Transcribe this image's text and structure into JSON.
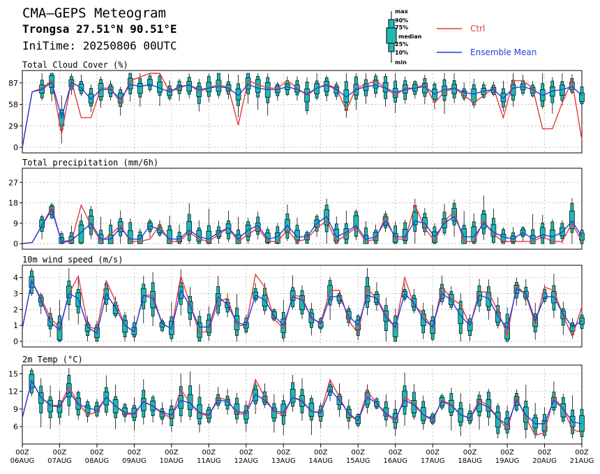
{
  "header": {
    "title": "CMA—GEPS Meteogram",
    "location": "Trongsa 27.51°N 90.51°E",
    "init": "IniTime: 20250806 00UTC"
  },
  "legend": {
    "box_labels": [
      "max",
      "90%",
      "75%",
      "median",
      "25%",
      "10%",
      "min"
    ],
    "ctrl": "Ctrl",
    "mean": "Ensemble Mean",
    "ctrl_color": "#e8393b",
    "mean_color": "#1f3fe0",
    "box_color": "#1fb9b3"
  },
  "chart_data": [
    {
      "type": "box-line",
      "title": "Total Cloud Cover (%)",
      "ylim": [
        0,
        100
      ],
      "yticks": [
        0,
        29,
        58,
        87
      ],
      "ctrl": [
        0,
        75,
        80,
        90,
        18,
        90,
        40,
        40,
        80,
        80,
        60,
        90,
        95,
        100,
        100,
        75,
        80,
        85,
        75,
        80,
        85,
        80,
        30,
        90,
        85,
        80,
        80,
        90,
        80,
        70,
        80,
        85,
        80,
        50,
        80,
        85,
        90,
        80,
        70,
        80,
        80,
        85,
        60,
        75,
        80,
        70,
        60,
        70,
        80,
        40,
        90,
        90,
        80,
        25,
        25,
        60,
        90,
        10
      ],
      "mean": [
        0,
        75,
        78,
        88,
        40,
        88,
        80,
        65,
        78,
        78,
        65,
        85,
        82,
        85,
        80,
        75,
        82,
        84,
        78,
        80,
        82,
        80,
        70,
        85,
        80,
        78,
        78,
        82,
        78,
        72,
        80,
        84,
        78,
        68,
        78,
        82,
        84,
        80,
        74,
        78,
        80,
        82,
        72,
        78,
        80,
        74,
        72,
        76,
        78,
        66,
        80,
        82,
        78,
        70,
        76,
        78,
        82,
        70
      ]
    },
    {
      "type": "box-line",
      "title": "Total precipitation (mm/6h)",
      "ylim": [
        0,
        32
      ],
      "yticks": [
        0,
        9,
        18,
        27
      ],
      "ctrl": [
        0,
        0.5,
        8,
        16,
        0.5,
        1,
        17,
        8,
        1,
        4,
        8,
        1,
        1,
        2,
        8,
        1,
        1,
        5,
        2,
        1,
        4,
        7,
        1,
        4,
        7,
        1,
        1,
        6,
        1,
        2,
        7,
        10,
        1,
        4,
        7,
        1,
        2,
        12,
        2,
        2,
        17,
        7,
        1,
        10,
        14,
        1,
        1,
        10,
        4,
        1,
        1,
        1,
        1,
        3,
        1,
        1,
        9,
        1
      ],
      "mean": [
        0,
        0.5,
        8,
        15,
        0.8,
        1.5,
        5,
        9,
        2,
        2,
        7,
        2,
        2,
        8,
        6,
        2,
        2,
        6,
        3,
        2,
        5,
        7,
        2,
        6,
        8,
        2,
        3,
        8,
        3,
        3,
        9,
        12,
        3,
        5,
        8,
        2,
        3,
        10,
        3,
        3,
        10,
        9,
        3,
        9,
        12,
        3,
        3,
        9,
        5,
        3,
        2,
        5,
        2,
        4,
        3,
        5,
        10,
        3
      ]
    },
    {
      "type": "box-line",
      "title": "10m wind speed (m/s)",
      "ylim": [
        0,
        4.6
      ],
      "yticks": [
        0,
        1,
        2,
        3,
        4
      ],
      "ctrl": [
        0.8,
        3.8,
        2.7,
        1.5,
        0.8,
        3,
        4.1,
        1,
        0.7,
        3.8,
        2.5,
        1,
        0.6,
        2.9,
        2.9,
        1.1,
        0.8,
        4.1,
        2.3,
        0.5,
        0.7,
        2.5,
        2.7,
        1,
        1,
        4.2,
        3.4,
        1.4,
        0.8,
        2.9,
        2.8,
        1.4,
        1.2,
        3.2,
        3.2,
        1.3,
        0.5,
        3.3,
        2.7,
        1.7,
        0.8,
        4,
        2.3,
        1.7,
        0.8,
        3.4,
        2.7,
        2.3,
        1,
        3.1,
        3.1,
        1.9,
        0.4,
        3.5,
        2.9,
        1.1,
        3.4,
        3.2,
        1.6,
        0.3,
        2.2
      ],
      "mean": [
        0.8,
        3.8,
        2.6,
        1.2,
        0.7,
        3,
        2.7,
        0.9,
        0.5,
        3,
        2.1,
        1,
        0.6,
        2.9,
        2.7,
        1.1,
        0.8,
        3.2,
        2.2,
        0.9,
        0.9,
        2.8,
        2.3,
        1.2,
        1,
        2.9,
        2.6,
        1.6,
        1,
        2.8,
        2.6,
        1.5,
        1.1,
        2.8,
        2.8,
        1.6,
        1,
        2.9,
        2.7,
        1.5,
        0.9,
        3,
        2.4,
        1.4,
        0.9,
        3,
        2.6,
        1.6,
        1,
        2.9,
        2.7,
        1.6,
        0.8,
        3.3,
        3,
        1.3,
        2.8,
        2.8,
        1.7,
        0.9,
        1.3
      ]
    },
    {
      "type": "box-line",
      "title": "2m Temp (°C)",
      "ylim": [
        4,
        16
      ],
      "yticks": [
        6,
        9,
        12,
        15
      ],
      "ctrl": [
        7.5,
        13.8,
        11,
        9.7,
        9.5,
        12.8,
        10,
        8,
        8.5,
        11,
        9.5,
        8.2,
        8,
        10.3,
        9.5,
        8.2,
        7.5,
        12.3,
        10,
        8.2,
        7.8,
        11,
        10.5,
        8.3,
        8,
        14,
        11,
        8.5,
        8,
        11,
        10.5,
        8.5,
        8.5,
        14,
        11,
        8,
        7,
        12,
        10,
        8,
        7,
        11,
        10,
        8,
        7,
        10.5,
        9.8,
        8,
        7.5,
        10.5,
        9.5,
        7.5,
        5.5,
        11,
        7.5,
        4.5,
        5,
        11,
        9,
        5.5,
        5
      ],
      "mean": [
        7.5,
        13.8,
        11,
        9.6,
        9.3,
        12,
        9.8,
        9.2,
        8.8,
        11,
        9.5,
        8.4,
        8.2,
        10.2,
        9.5,
        8.4,
        8,
        10.5,
        10,
        8.4,
        8,
        10.5,
        10.3,
        8.6,
        8.3,
        11.5,
        10.5,
        8.7,
        8.4,
        11,
        10.3,
        8.6,
        8.3,
        12.3,
        10.5,
        8.3,
        7,
        11,
        10,
        8.2,
        7.3,
        10.5,
        9.7,
        8,
        7.3,
        10.3,
        9.6,
        8,
        7.4,
        10,
        9.3,
        7.4,
        6.3,
        10.5,
        8,
        6.5,
        6.5,
        10.5,
        9,
        6.8,
        6.5
      ]
    }
  ],
  "x_axis": {
    "ticks": [
      {
        "hour": "00Z",
        "date": "06AUG"
      },
      {
        "hour": "00Z",
        "date": "07AUG"
      },
      {
        "hour": "00Z",
        "date": "08AUG"
      },
      {
        "hour": "00Z",
        "date": "09AUG"
      },
      {
        "hour": "00Z",
        "date": "10AUG"
      },
      {
        "hour": "00Z",
        "date": "11AUG"
      },
      {
        "hour": "00Z",
        "date": "12AUG"
      },
      {
        "hour": "00Z",
        "date": "13AUG"
      },
      {
        "hour": "00Z",
        "date": "14AUG"
      },
      {
        "hour": "00Z",
        "date": "15AUG"
      },
      {
        "hour": "00Z",
        "date": "16AUG"
      },
      {
        "hour": "00Z",
        "date": "17AUG"
      },
      {
        "hour": "00Z",
        "date": "18AUG"
      },
      {
        "hour": "00Z",
        "date": "19AUG"
      },
      {
        "hour": "00Z",
        "date": "20AUG"
      },
      {
        "hour": "00Z",
        "date": "21AUG"
      }
    ]
  }
}
